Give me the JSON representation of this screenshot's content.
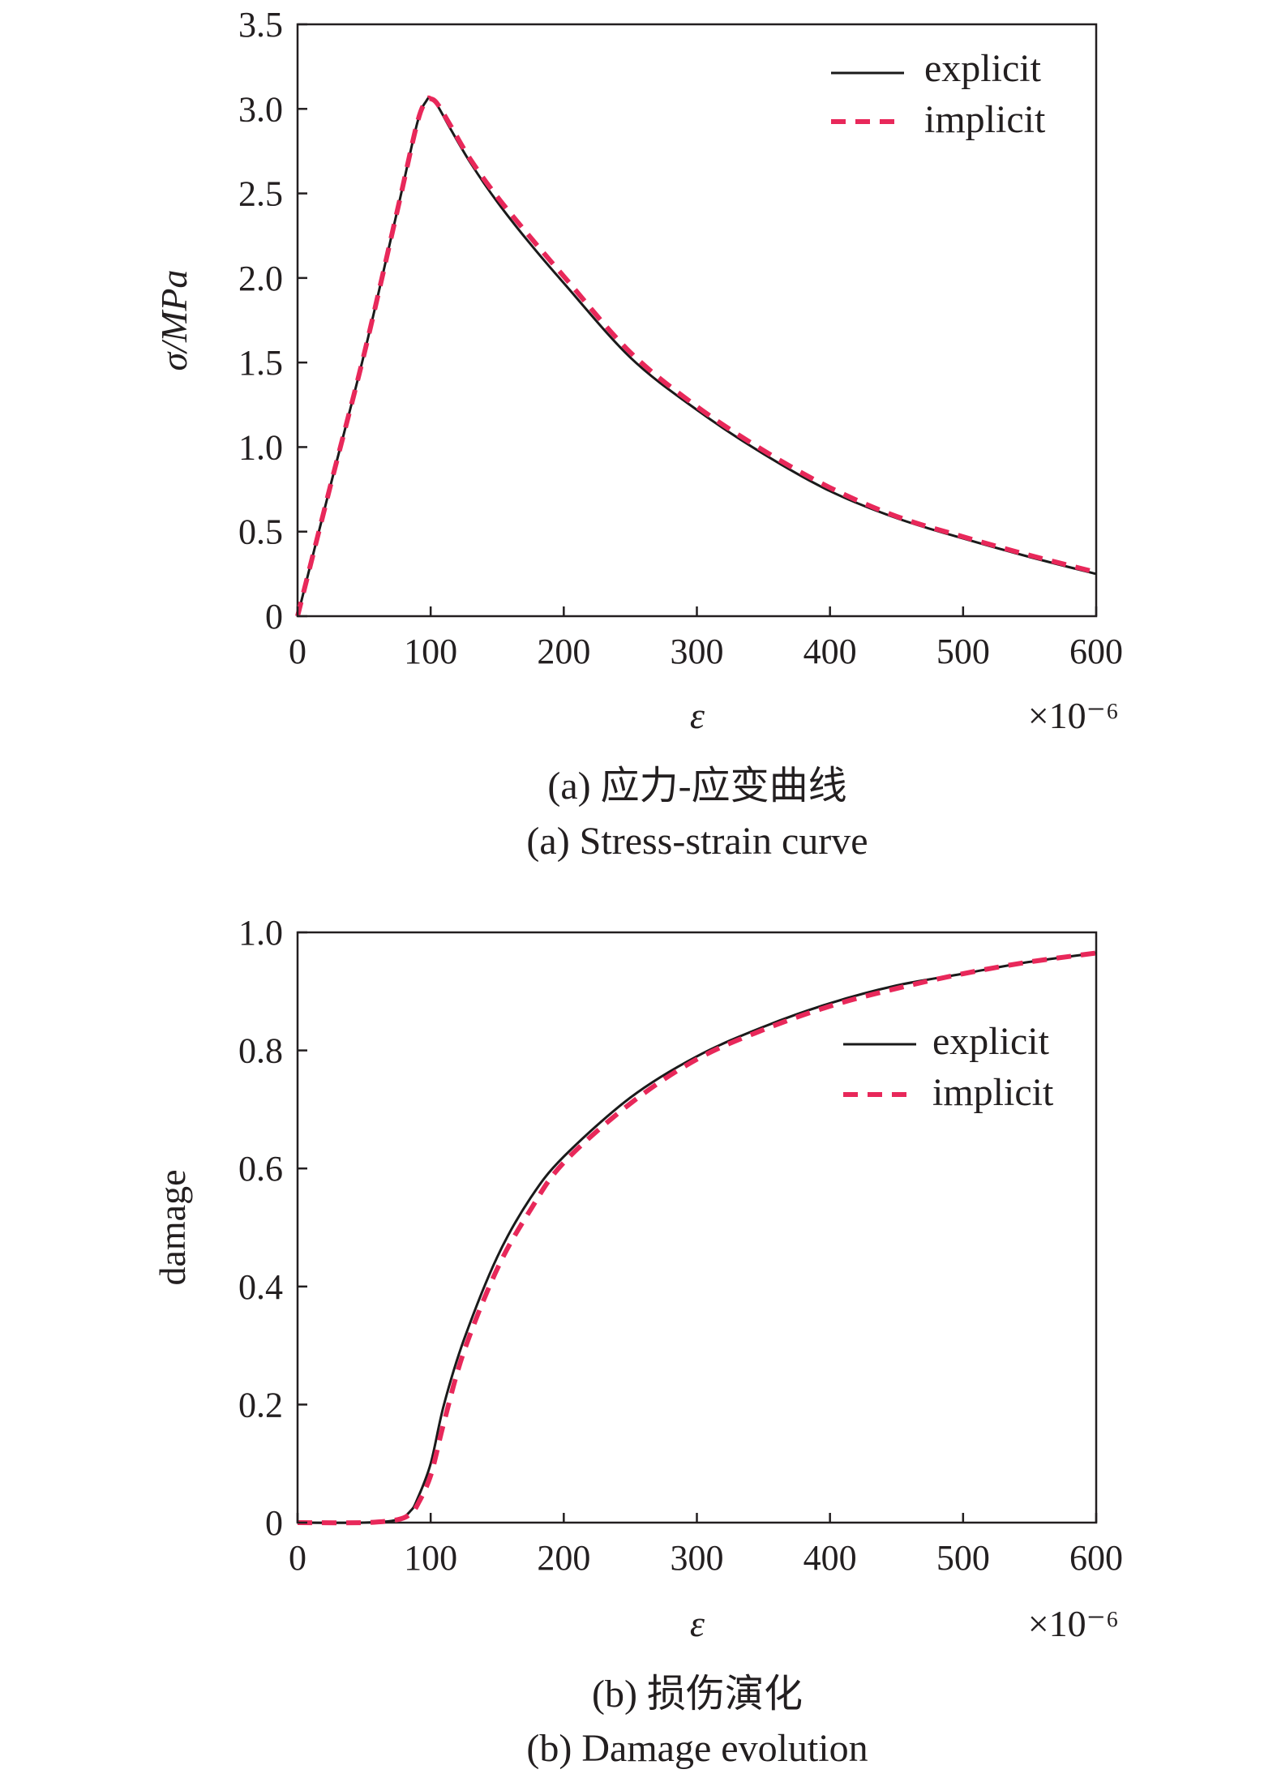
{
  "panels": [
    {
      "caption_cn": "(a) 应力-应变曲线",
      "caption_en": "(a) Stress-strain curve",
      "chart_data": {
        "type": "line",
        "xlabel": "ε",
        "x_multiplier": "×10⁻⁶",
        "ylabel": "σ/MPa",
        "xlim": [
          0,
          600
        ],
        "ylim": [
          0,
          3.5
        ],
        "xticks": [
          "0",
          "100",
          "200",
          "300",
          "400",
          "500",
          "600"
        ],
        "yticks": [
          "0",
          "0.5",
          "1.0",
          "1.5",
          "2.0",
          "2.5",
          "3.0",
          "3.5"
        ],
        "legend_position": "top-right",
        "grid": false,
        "series": [
          {
            "name": "explicit",
            "style": "solid",
            "color": "#1a1a1a",
            "x": [
              0,
              25,
              50,
              75,
              90,
              97,
              100,
              105,
              115,
              130,
              150,
              175,
              200,
              250,
              300,
              350,
              400,
              450,
              500,
              550,
              600
            ],
            "y": [
              0,
              0.78,
              1.55,
              2.4,
              2.92,
              3.05,
              3.06,
              3.02,
              2.88,
              2.68,
              2.45,
              2.2,
              1.97,
              1.53,
              1.22,
              0.96,
              0.74,
              0.58,
              0.46,
              0.35,
              0.25
            ]
          },
          {
            "name": "implicit",
            "style": "dashed",
            "color": "#e8285a",
            "x": [
              0,
              25,
              50,
              75,
              90,
              97,
              100,
              105,
              115,
              130,
              150,
              175,
              200,
              250,
              300,
              350,
              400,
              450,
              500,
              550,
              600
            ],
            "y": [
              0,
              0.78,
              1.55,
              2.4,
              2.92,
              3.05,
              3.06,
              3.03,
              2.9,
              2.7,
              2.48,
              2.24,
              2.01,
              1.56,
              1.24,
              0.98,
              0.76,
              0.59,
              0.47,
              0.36,
              0.26
            ]
          }
        ]
      }
    },
    {
      "caption_cn": "(b) 损伤演化",
      "caption_en": "(b) Damage evolution",
      "chart_data": {
        "type": "line",
        "xlabel": "ε",
        "x_multiplier": "×10⁻⁶",
        "ylabel": "damage",
        "xlim": [
          0,
          600
        ],
        "ylim": [
          0,
          1.0
        ],
        "xticks": [
          "0",
          "100",
          "200",
          "300",
          "400",
          "500",
          "600"
        ],
        "yticks": [
          "0",
          "0.2",
          "0.4",
          "0.6",
          "0.8",
          "1.0"
        ],
        "legend_position": "upper-right",
        "grid": false,
        "series": [
          {
            "name": "explicit",
            "style": "solid",
            "color": "#1a1a1a",
            "x": [
              0,
              50,
              75,
              85,
              90,
              100,
              110,
              125,
              150,
              175,
              200,
              250,
              300,
              350,
              400,
              450,
              500,
              550,
              600
            ],
            "y": [
              0,
              0,
              0.005,
              0.02,
              0.04,
              0.1,
              0.2,
              0.31,
              0.45,
              0.55,
              0.62,
              0.72,
              0.79,
              0.84,
              0.88,
              0.91,
              0.93,
              0.95,
              0.965
            ]
          },
          {
            "name": "implicit",
            "style": "dashed",
            "color": "#e8285a",
            "x": [
              0,
              50,
              75,
              85,
              90,
              100,
              110,
              125,
              150,
              175,
              200,
              250,
              300,
              350,
              400,
              450,
              500,
              550,
              600
            ],
            "y": [
              0,
              0,
              0.005,
              0.015,
              0.03,
              0.08,
              0.17,
              0.29,
              0.43,
              0.53,
              0.61,
              0.71,
              0.785,
              0.835,
              0.875,
              0.905,
              0.93,
              0.95,
              0.965
            ]
          }
        ]
      }
    }
  ]
}
